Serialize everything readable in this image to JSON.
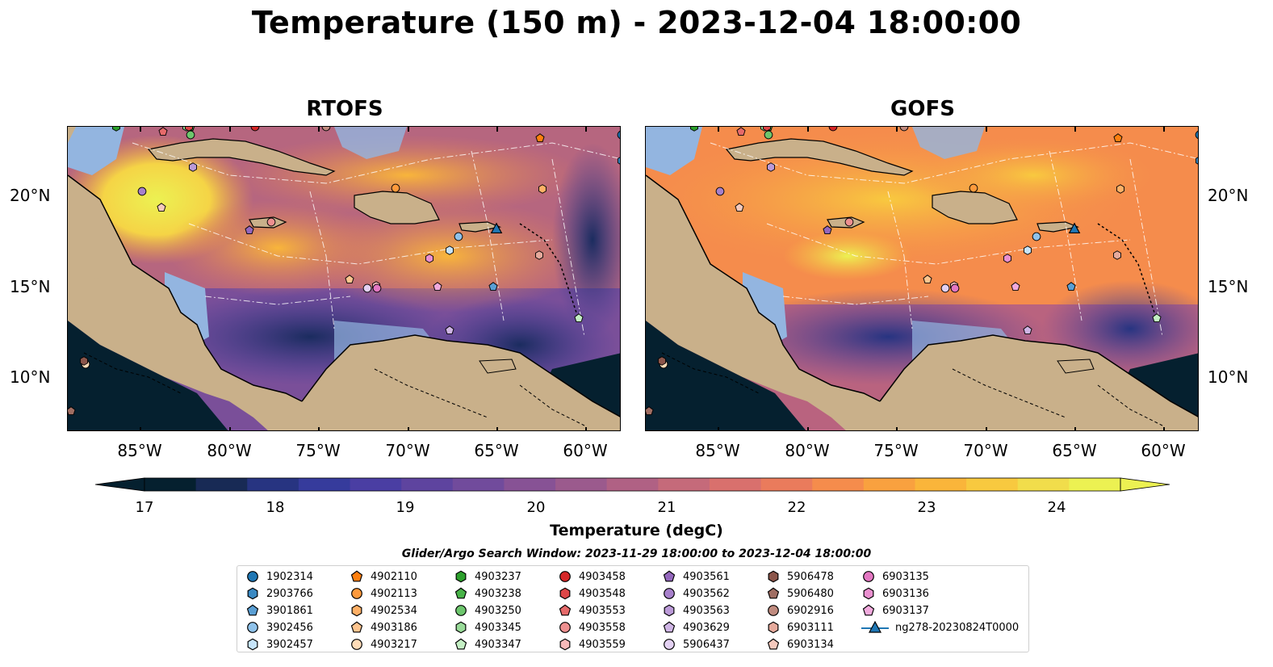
{
  "title": "Temperature (150 m) - 2023-12-04 18:00:00",
  "panels": [
    {
      "name": "RTOFS"
    },
    {
      "name": "GOFS"
    }
  ],
  "axes": {
    "lon_ticks": [
      "85°W",
      "80°W",
      "75°W",
      "70°W",
      "65°W",
      "60°W"
    ],
    "lat_ticks": [
      "20°N",
      "15°N",
      "10°N"
    ]
  },
  "colorbar": {
    "label": "Temperature (degC)",
    "ticks": [
      "17",
      "18",
      "19",
      "20",
      "21",
      "22",
      "23",
      "24"
    ],
    "colors": [
      "#05202f",
      "#182a55",
      "#273481",
      "#363b9c",
      "#4a3ea3",
      "#5e449f",
      "#714b9c",
      "#875295",
      "#9b5a8d",
      "#b06184",
      "#c56a7a",
      "#d9706d",
      "#ea7b5c",
      "#f58c4c",
      "#f9a13f",
      "#fab53a",
      "#f8c93f",
      "#f1dd4b",
      "#ecf152"
    ],
    "min_extend": "#05202f",
    "max_extend": "#ecf152"
  },
  "legend": {
    "title": "Glider/Argo Search Window: 2023-11-29 18:00:00 to 2023-12-04 18:00:00",
    "entries": [
      {
        "label": "1902314",
        "marker": "circle",
        "color": "#1f77b4"
      },
      {
        "label": "2903766",
        "marker": "hexagon",
        "color": "#3a89c2"
      },
      {
        "label": "3901861",
        "marker": "pentagon",
        "color": "#5a9fd4"
      },
      {
        "label": "3902456",
        "marker": "circle",
        "color": "#8fc2ea"
      },
      {
        "label": "3902457",
        "marker": "hexagon",
        "color": "#c6e4fa"
      },
      {
        "label": "4902110",
        "marker": "pentagon",
        "color": "#ff7f0e"
      },
      {
        "label": "4902113",
        "marker": "circle",
        "color": "#ff9a3c"
      },
      {
        "label": "4902534",
        "marker": "hexagon",
        "color": "#ffb066"
      },
      {
        "label": "4903186",
        "marker": "pentagon",
        "color": "#ffc58f"
      },
      {
        "label": "4903217",
        "marker": "circle",
        "color": "#ffdcb8"
      },
      {
        "label": "4903237",
        "marker": "hexagon",
        "color": "#2ca02c"
      },
      {
        "label": "4903238",
        "marker": "pentagon",
        "color": "#48b348"
      },
      {
        "label": "4903250",
        "marker": "circle",
        "color": "#6dc66d"
      },
      {
        "label": "4903345",
        "marker": "hexagon",
        "color": "#98da98"
      },
      {
        "label": "4903347",
        "marker": "pentagon",
        "color": "#c4efc4"
      },
      {
        "label": "4903458",
        "marker": "circle",
        "color": "#d62728"
      },
      {
        "label": "4903548",
        "marker": "hexagon",
        "color": "#de4748"
      },
      {
        "label": "4903553",
        "marker": "pentagon",
        "color": "#e66a6a"
      },
      {
        "label": "4903558",
        "marker": "circle",
        "color": "#ee9090"
      },
      {
        "label": "4903559",
        "marker": "hexagon",
        "color": "#f6b9b9"
      },
      {
        "label": "4903561",
        "marker": "pentagon",
        "color": "#9467bd"
      },
      {
        "label": "4903562",
        "marker": "circle",
        "color": "#a780cb"
      },
      {
        "label": "4903563",
        "marker": "hexagon",
        "color": "#bb9ad8"
      },
      {
        "label": "4903629",
        "marker": "pentagon",
        "color": "#cfb5e5"
      },
      {
        "label": "5906437",
        "marker": "circle",
        "color": "#e3d1f2"
      },
      {
        "label": "5906478",
        "marker": "hexagon",
        "color": "#8c564b"
      },
      {
        "label": "5906480",
        "marker": "pentagon",
        "color": "#a06e63"
      },
      {
        "label": "6902916",
        "marker": "circle",
        "color": "#c08b7f"
      },
      {
        "label": "6903111",
        "marker": "hexagon",
        "color": "#e6aa9c"
      },
      {
        "label": "6903134",
        "marker": "pentagon",
        "color": "#f5c9bd"
      },
      {
        "label": "6903135",
        "marker": "circle",
        "color": "#e377c2"
      },
      {
        "label": "6903136",
        "marker": "hexagon",
        "color": "#ea90d0"
      },
      {
        "label": "6903137",
        "marker": "pentagon",
        "color": "#f1aadd"
      },
      {
        "label": "ng278-20230824T0000",
        "marker": "triangle",
        "color": "#1f77b4"
      }
    ]
  }
}
